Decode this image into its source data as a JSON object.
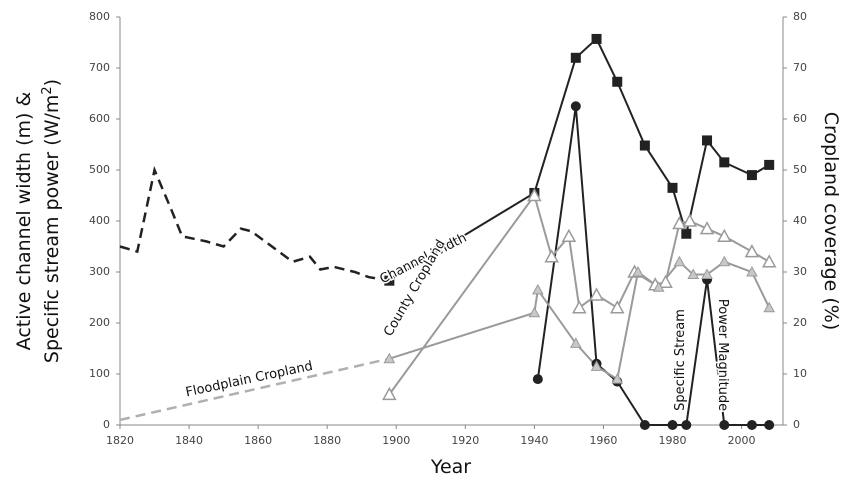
{
  "chart_data": {
    "type": "line",
    "xlabel": "Year",
    "ylabel": [
      "Active channel width (m) &",
      "Specific stream power (W/m",
      "2",
      ")"
    ],
    "y2label": "Cropland coverage (%)",
    "xlim": [
      1820,
      2012
    ],
    "xticks": [
      1820,
      1840,
      1860,
      1880,
      1900,
      1920,
      1940,
      1960,
      1980,
      2000
    ],
    "ylim": [
      0,
      800
    ],
    "yticks": [
      0,
      100,
      200,
      300,
      400,
      500,
      600,
      700,
      800
    ],
    "y2lim": [
      0,
      80
    ],
    "y2ticks": [
      0,
      10,
      20,
      30,
      40,
      50,
      60,
      70,
      80
    ],
    "annotations": [
      "Channel Width",
      "County Cropland",
      "Floodplain Cropland",
      "Specific Stream",
      "Power Magnitude"
    ],
    "series": [
      {
        "color": "#222222",
        "dash": true,
        "marker": "none",
        "x": [
          1820,
          1825,
          1830,
          1835,
          1838,
          1845,
          1850,
          1855,
          1858,
          1862,
          1866,
          1870,
          1875,
          1878,
          1882,
          1888,
          1892,
          1898
        ],
        "values": [
          350,
          340,
          500,
          420,
          370,
          360,
          350,
          385,
          380,
          360,
          340,
          320,
          330,
          305,
          310,
          300,
          290,
          283
        ]
      },
      {
        "color": "#222222",
        "dash": false,
        "marker": "square",
        "x": [
          1898,
          1940,
          1952,
          1958,
          1964,
          1972,
          1980,
          1984,
          1990,
          1995,
          2003,
          2008
        ],
        "values": [
          283,
          455,
          720,
          757,
          673,
          548,
          465,
          375,
          558,
          515,
          490,
          510
        ]
      },
      {
        "color": "#222222",
        "dash": false,
        "marker": "circle",
        "x": [
          1941,
          1952,
          1958,
          1964,
          1972,
          1980,
          1984,
          1990,
          1995,
          2003,
          2008
        ],
        "values": [
          90,
          625,
          120,
          85,
          0,
          0,
          0,
          285,
          0,
          0,
          0
        ]
      },
      {
        "color": "#9a9a9a",
        "dash": false,
        "marker": "triangle-open",
        "axis": "y2",
        "x": [
          1898,
          1940,
          1945,
          1950,
          1953,
          1958,
          1964,
          1969,
          1975,
          1978,
          1982,
          1985,
          1990,
          1995,
          2003,
          2008
        ],
        "values": [
          6,
          45,
          33,
          37,
          23,
          25.5,
          23,
          30,
          27.5,
          28,
          39.5,
          40,
          38.5,
          37,
          34,
          32
        ]
      },
      {
        "color": "#b0b0b0",
        "dash": true,
        "marker": "none",
        "axis": "y2",
        "x": [
          1820,
          1898
        ],
        "values": [
          1,
          13
        ]
      },
      {
        "color": "#9a9a9a",
        "dash": false,
        "marker": "triangle",
        "axis": "y2",
        "x": [
          1898,
          1940,
          1941,
          1952,
          1958,
          1964,
          1970,
          1976,
          1982,
          1986,
          1990,
          1995,
          2003,
          2008
        ],
        "values": [
          13,
          22,
          26.5,
          16,
          11.5,
          9,
          30,
          27,
          32,
          29.5,
          29.5,
          32,
          30,
          23
        ]
      }
    ]
  }
}
